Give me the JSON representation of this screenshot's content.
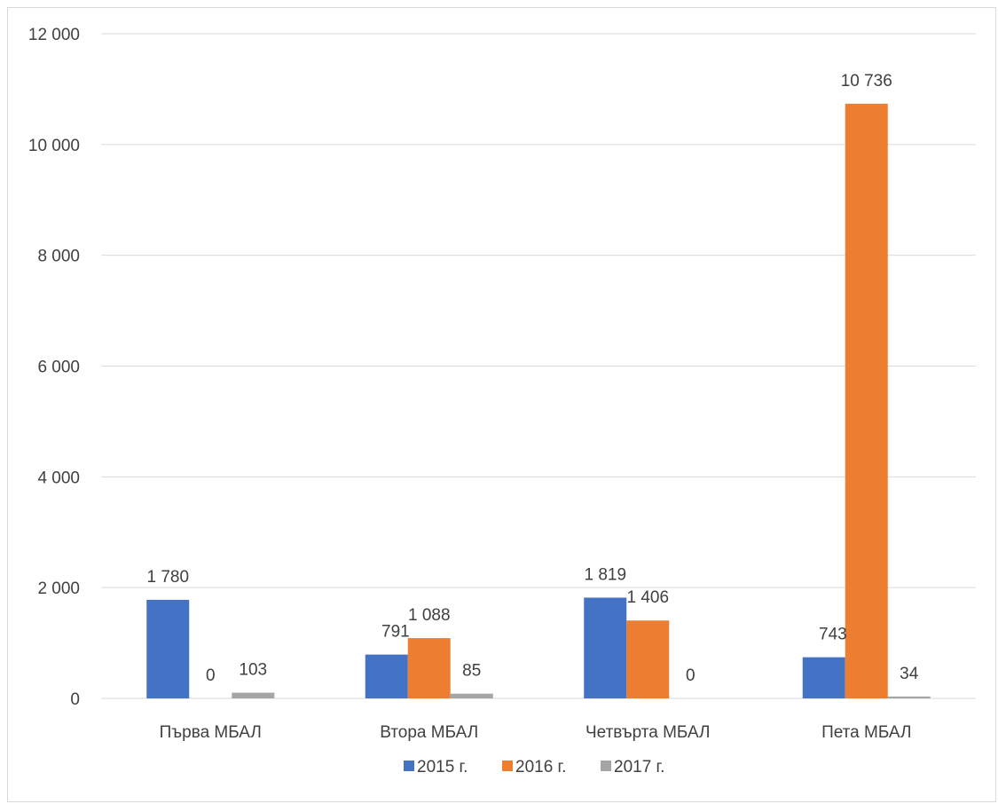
{
  "chart_data": {
    "type": "bar",
    "categories": [
      "Първа МБАЛ",
      "Втора МБАЛ",
      "Четвърта МБАЛ",
      "Пета МБАЛ"
    ],
    "series": [
      {
        "name": "2015 г.",
        "color": "#4472C4",
        "values": [
          1780,
          791,
          1819,
          743
        ],
        "labels": [
          "1 780",
          "791",
          "1 819",
          "743"
        ]
      },
      {
        "name": "2016 г.",
        "color": "#ED7D31",
        "values": [
          0,
          1088,
          1406,
          10736
        ],
        "labels": [
          "0",
          "1 088",
          "1 406",
          "10 736"
        ]
      },
      {
        "name": "2017 г.",
        "color": "#A5A5A5",
        "values": [
          103,
          85,
          0,
          34
        ],
        "labels": [
          "103",
          "85",
          "0",
          "34"
        ]
      }
    ],
    "yticks": [
      0,
      2000,
      4000,
      6000,
      8000,
      10000,
      12000
    ],
    "ytick_labels": [
      "0",
      "2 000",
      "4 000",
      "6 000",
      "8 000",
      "10 000",
      "12 000"
    ],
    "ylim": [
      0,
      12000
    ],
    "grid": true,
    "legend_position": "bottom"
  }
}
